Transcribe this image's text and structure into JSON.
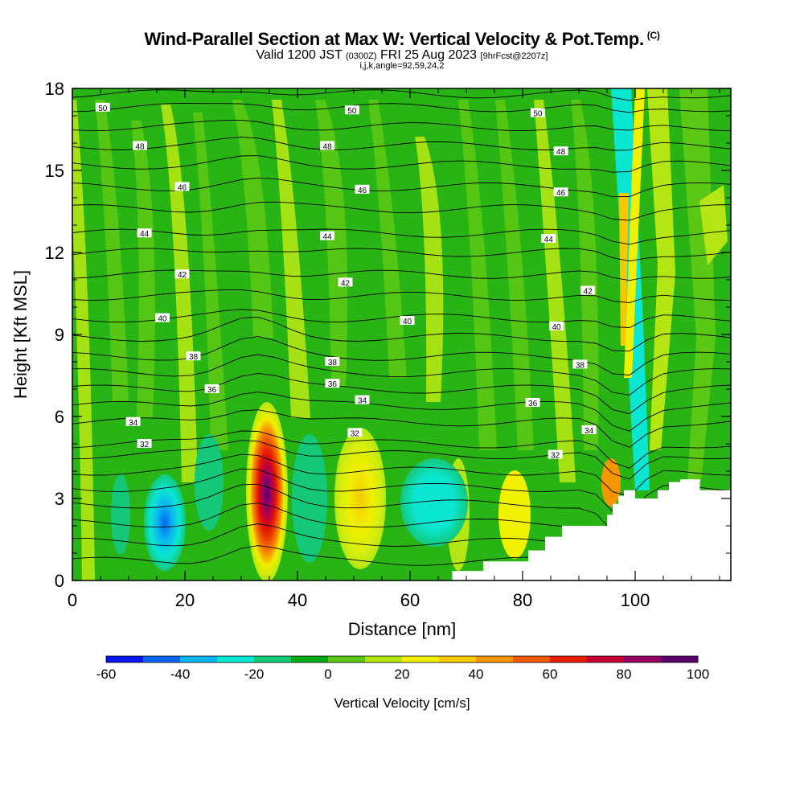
{
  "title": {
    "main": "Wind-Parallel Section at Max W: Vertical Velocity & Pot.Temp.",
    "copyright": "(C)",
    "valid_prefix": "Valid 1200 JST",
    "valid_zulu": "(0300Z)",
    "valid_date": "FRI 25 Aug 2023",
    "forecast": "[9hrFcst@2207z]",
    "indices": "i,j,k,angle=92,59,24,2"
  },
  "chart_data": {
    "type": "heatmap",
    "xlabel": "Distance [nm]",
    "ylabel": "Height [Kft MSL]",
    "xlim": [
      0,
      117
    ],
    "ylim": [
      0,
      18
    ],
    "xticks": [
      0,
      20,
      40,
      60,
      80,
      100
    ],
    "yticks": [
      0,
      3,
      6,
      9,
      12,
      15,
      18
    ],
    "colorbar": {
      "label": "Vertical Velocity [cm/s]",
      "tick_values": [
        -60,
        -40,
        -20,
        0,
        20,
        40,
        60,
        80,
        100
      ],
      "tick_labels": [
        "-60",
        "-40",
        "-20",
        "0",
        "20",
        "40",
        "60",
        "80",
        "100"
      ],
      "levels": [
        -60,
        -50,
        -40,
        -30,
        -20,
        -10,
        0,
        10,
        20,
        30,
        40,
        50,
        60,
        70,
        80,
        90,
        100
      ],
      "colors": [
        "#0a14f0",
        "#0a64f0",
        "#0ab4f0",
        "#0ae6d2",
        "#14c878",
        "#00aa14",
        "#5ac814",
        "#b4e614",
        "#f0f000",
        "#f5c800",
        "#f59600",
        "#f05a00",
        "#e61e00",
        "#c80032",
        "#960064",
        "#5a006e"
      ]
    },
    "field_background": "#28b414",
    "theta_contours": {
      "labels": [
        {
          "value": "50",
          "x": 5.4,
          "y": 17.3
        },
        {
          "value": "48",
          "x": 12.0,
          "y": 15.9
        },
        {
          "value": "46",
          "x": 19.5,
          "y": 14.4
        },
        {
          "value": "44",
          "x": 12.8,
          "y": 12.7
        },
        {
          "value": "42",
          "x": 19.5,
          "y": 11.2
        },
        {
          "value": "40",
          "x": 16.0,
          "y": 9.6
        },
        {
          "value": "38",
          "x": 21.5,
          "y": 8.2
        },
        {
          "value": "36",
          "x": 24.8,
          "y": 7.0
        },
        {
          "value": "34",
          "x": 10.8,
          "y": 5.8
        },
        {
          "value": "32",
          "x": 12.8,
          "y": 5.0
        },
        {
          "value": "50",
          "x": 49.7,
          "y": 17.2
        },
        {
          "value": "48",
          "x": 45.3,
          "y": 15.9
        },
        {
          "value": "46",
          "x": 51.5,
          "y": 14.3
        },
        {
          "value": "44",
          "x": 45.3,
          "y": 12.6
        },
        {
          "value": "42",
          "x": 48.5,
          "y": 10.9
        },
        {
          "value": "40",
          "x": 59.5,
          "y": 9.5
        },
        {
          "value": "38",
          "x": 46.2,
          "y": 8.0
        },
        {
          "value": "36",
          "x": 46.2,
          "y": 7.2
        },
        {
          "value": "34",
          "x": 51.5,
          "y": 6.6
        },
        {
          "value": "32",
          "x": 50.2,
          "y": 5.4
        },
        {
          "value": "50",
          "x": 82.7,
          "y": 17.1
        },
        {
          "value": "48",
          "x": 86.8,
          "y": 15.7
        },
        {
          "value": "46",
          "x": 86.8,
          "y": 14.2
        },
        {
          "value": "44",
          "x": 84.6,
          "y": 12.5
        },
        {
          "value": "42",
          "x": 91.6,
          "y": 10.6
        },
        {
          "value": "40",
          "x": 86.0,
          "y": 9.3
        },
        {
          "value": "38",
          "x": 90.2,
          "y": 7.9
        },
        {
          "value": "36",
          "x": 81.8,
          "y": 6.5
        },
        {
          "value": "34",
          "x": 91.8,
          "y": 5.5
        },
        {
          "value": "32",
          "x": 85.8,
          "y": 4.6
        }
      ]
    }
  }
}
